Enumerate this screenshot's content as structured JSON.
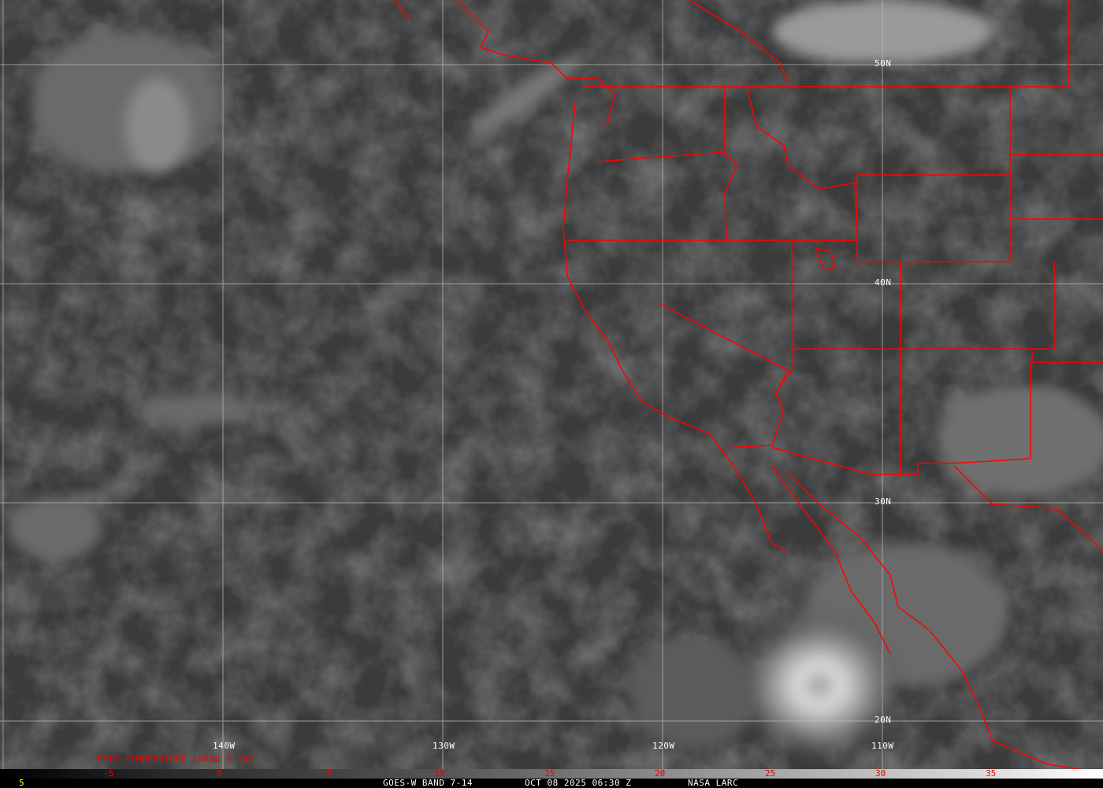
{
  "image": {
    "satellite_product": "GOES-W BAND 7-14",
    "date_time": "OCT 08 2025 06:30 Z",
    "credit": "NASA LARC",
    "product_title": "BRIT TEMPERATURE (BAND 7-14)",
    "footer_left_value": "5",
    "colors": {
      "borders": "#ff0000",
      "grid": "#bfbfbf",
      "colorbar_labels": "#ff0000",
      "footer_left": "#ffff00"
    }
  },
  "grid": {
    "longitudes": [
      "140W",
      "130W",
      "120W",
      "110W"
    ],
    "latitudes": [
      "50N",
      "40N",
      "30N",
      "20N"
    ]
  },
  "colorbar": {
    "labels": [
      "-5",
      "0",
      "5",
      "10",
      "15",
      "20",
      "25",
      "30",
      "35"
    ],
    "gradient": "black-to-white"
  }
}
